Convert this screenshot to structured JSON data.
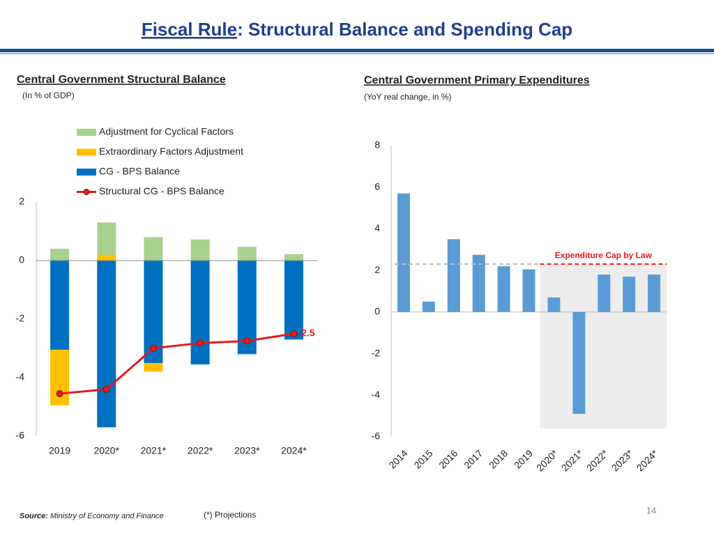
{
  "slide": {
    "title_link": "Fiscal Rule",
    "title_rest": ": Structural Balance and Spending Cap",
    "source_label": "Source:",
    "source": "Ministry of Economy and Finance",
    "footnote": "(*) Projections",
    "page_number": "14"
  },
  "chart_data": [
    {
      "type": "stacked-bar-line",
      "title": "Central Government Structural Balance",
      "subtitle": "(In % of GDP)",
      "categories": [
        "2019",
        "2020*",
        "2021*",
        "2022*",
        "2023*",
        "2024*"
      ],
      "series": [
        {
          "name": "Adjustment for Cyclical Factors",
          "type": "bar",
          "color": "#a9d18e",
          "values": [
            0.4,
            1.1,
            0.8,
            0.72,
            0.47,
            0.22
          ]
        },
        {
          "name": "Extraordinary Factors Adjustment",
          "type": "bar",
          "color": "#ffc000",
          "values": [
            -1.9,
            0.2,
            -0.3,
            0,
            0,
            0
          ]
        },
        {
          "name": "CG - BPS Balance",
          "type": "bar",
          "color": "#0070c0",
          "values": [
            -3.05,
            -5.7,
            -3.5,
            -3.55,
            -3.2,
            -2.7
          ]
        },
        {
          "name": "Structural CG - BPS Balance",
          "type": "line",
          "color": "#e31b1b",
          "values": [
            -4.55,
            -4.4,
            -3.0,
            -2.82,
            -2.75,
            -2.5
          ],
          "label_last": true
        }
      ],
      "ylim": [
        -6,
        2
      ],
      "yticks": [
        -6,
        -4,
        -2,
        0,
        2
      ],
      "grid": false
    },
    {
      "type": "bar",
      "title": "Central Government Primary Expenditures",
      "subtitle": "(YoY real change, in %)",
      "categories": [
        "2014",
        "2015",
        "2016",
        "2017",
        "2018",
        "2019",
        "2020*",
        "2021*",
        "2022*",
        "2023*",
        "2024*"
      ],
      "values": [
        5.7,
        0.5,
        3.5,
        2.75,
        2.2,
        2.05,
        0.7,
        -4.9,
        1.8,
        1.7,
        1.8
      ],
      "color": "#5b9bd5",
      "reference_line": {
        "value": 2.3,
        "label": "Expenditure Cap by Law",
        "color": "#e31b1b"
      },
      "shaded_from_index": 6,
      "ylim": [
        -6,
        8
      ],
      "yticks": [
        -6,
        -4,
        -2,
        0,
        2,
        4,
        6,
        8
      ],
      "grid": false
    }
  ]
}
